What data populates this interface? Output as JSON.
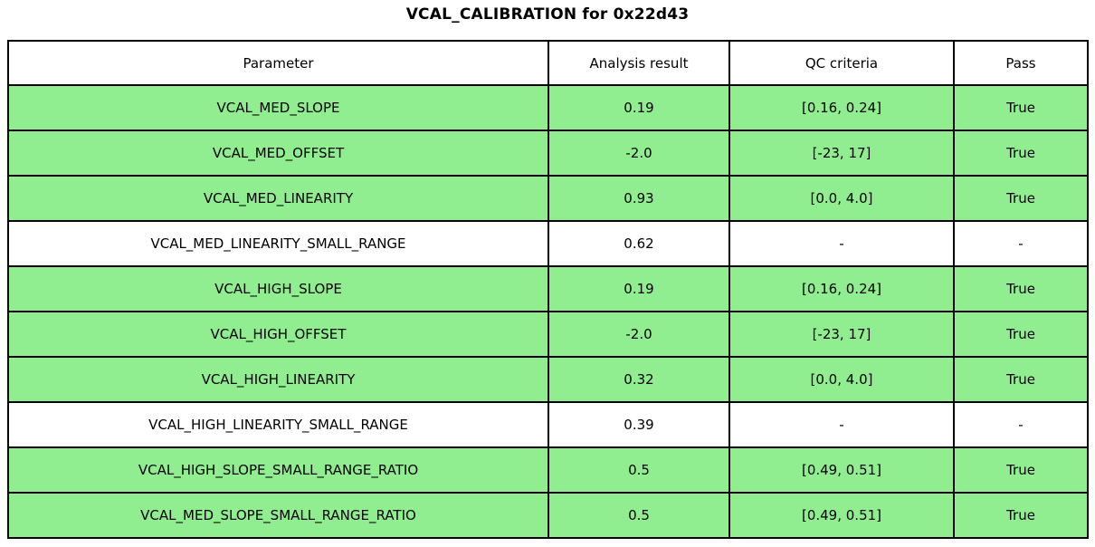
{
  "colors": {
    "pass_row_bg": "#90EE90",
    "neutral_row_bg": "#FFFFFF",
    "border": "#000000",
    "text": "#000000"
  },
  "chart_data": {
    "type": "table",
    "title": "VCAL_CALIBRATION for 0x22d43",
    "columns": [
      "Parameter",
      "Analysis result",
      "QC criteria",
      "Pass"
    ],
    "rows": [
      {
        "parameter": "VCAL_MED_SLOPE",
        "result": "0.19",
        "criteria": "[0.16, 0.24]",
        "pass": "True",
        "highlight": true
      },
      {
        "parameter": "VCAL_MED_OFFSET",
        "result": "-2.0",
        "criteria": "[-23, 17]",
        "pass": "True",
        "highlight": true
      },
      {
        "parameter": "VCAL_MED_LINEARITY",
        "result": "0.93",
        "criteria": "[0.0, 4.0]",
        "pass": "True",
        "highlight": true
      },
      {
        "parameter": "VCAL_MED_LINEARITY_SMALL_RANGE",
        "result": "0.62",
        "criteria": "-",
        "pass": "-",
        "highlight": false
      },
      {
        "parameter": "VCAL_HIGH_SLOPE",
        "result": "0.19",
        "criteria": "[0.16, 0.24]",
        "pass": "True",
        "highlight": true
      },
      {
        "parameter": "VCAL_HIGH_OFFSET",
        "result": "-2.0",
        "criteria": "[-23, 17]",
        "pass": "True",
        "highlight": true
      },
      {
        "parameter": "VCAL_HIGH_LINEARITY",
        "result": "0.32",
        "criteria": "[0.0, 4.0]",
        "pass": "True",
        "highlight": true
      },
      {
        "parameter": "VCAL_HIGH_LINEARITY_SMALL_RANGE",
        "result": "0.39",
        "criteria": "-",
        "pass": "-",
        "highlight": false
      },
      {
        "parameter": "VCAL_HIGH_SLOPE_SMALL_RANGE_RATIO",
        "result": "0.5",
        "criteria": "[0.49, 0.51]",
        "pass": "True",
        "highlight": true
      },
      {
        "parameter": "VCAL_MED_SLOPE_SMALL_RANGE_RATIO",
        "result": "0.5",
        "criteria": "[0.49, 0.51]",
        "pass": "True",
        "highlight": true
      }
    ]
  }
}
